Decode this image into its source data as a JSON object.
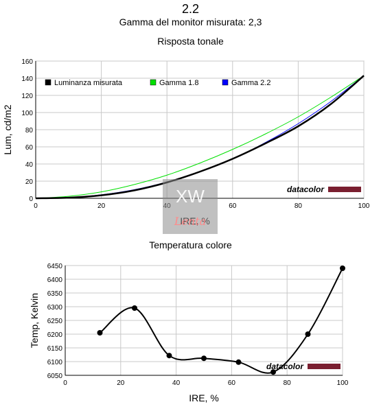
{
  "page": {
    "title": "2.2",
    "subtitle": "Gamma del monitor misurata: 2,3"
  },
  "watermark": {
    "text": "XW Lenta"
  },
  "chart_data": [
    {
      "type": "line",
      "title": "Risposta tonale",
      "xlabel": "IRE, %",
      "ylabel": "Lum, cd/m2",
      "xlim": [
        0,
        100
      ],
      "ylim": [
        0,
        160
      ],
      "xticks": [
        0,
        20,
        40,
        60,
        80,
        100
      ],
      "yticks": [
        0,
        20,
        40,
        60,
        80,
        100,
        120,
        140,
        160
      ],
      "grid": true,
      "legend": "top-left",
      "brand": "datacolor",
      "series": [
        {
          "name": "Luminanza misurata",
          "color": "#000000",
          "x": [
            0,
            10,
            20,
            30,
            40,
            50,
            60,
            70,
            80,
            90,
            100
          ],
          "y": [
            0,
            0.7,
            3.5,
            9.2,
            18.5,
            31,
            46,
            64,
            84,
            110,
            143
          ]
        },
        {
          "name": "Gamma 1.8",
          "color": "#00e000",
          "x": [
            0,
            10,
            20,
            30,
            40,
            50,
            60,
            70,
            80,
            90,
            100
          ],
          "y": [
            0,
            2.3,
            7.5,
            16,
            27,
            41,
            57,
            75,
            95,
            118,
            143
          ]
        },
        {
          "name": "Gamma 2.2",
          "color": "#0000ff",
          "x": [
            0,
            10,
            20,
            30,
            40,
            50,
            60,
            70,
            80,
            90,
            100
          ],
          "y": [
            0,
            0.9,
            4.1,
            10,
            19,
            31,
            46,
            65,
            87,
            113,
            143
          ]
        }
      ]
    },
    {
      "type": "line",
      "title": "Temperatura colore",
      "xlabel": "IRE, %",
      "ylabel": "Temp, Kelvin",
      "xlim": [
        0,
        100
      ],
      "ylim": [
        6050,
        6450
      ],
      "xticks": [
        0,
        20,
        40,
        60,
        80,
        100
      ],
      "yticks": [
        6050,
        6100,
        6150,
        6200,
        6250,
        6300,
        6350,
        6400,
        6450
      ],
      "grid": true,
      "brand": "datacolor",
      "series": [
        {
          "color": "#000000",
          "x": [
            12.5,
            25,
            37.5,
            50,
            62.5,
            75,
            87.5,
            100
          ],
          "y": [
            6205,
            6295,
            6122,
            6112,
            6098,
            6062,
            6200,
            6440
          ]
        }
      ]
    }
  ]
}
